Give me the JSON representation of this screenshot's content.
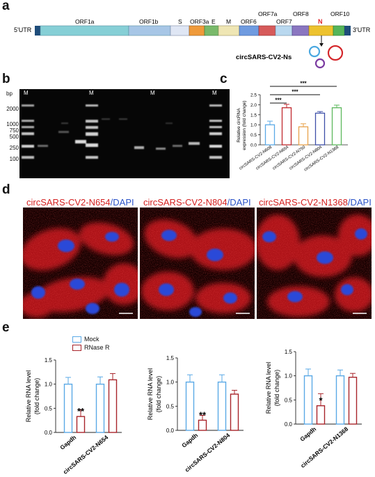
{
  "panels": {
    "a": "a",
    "b": "b",
    "c": "c",
    "d": "d",
    "e": "e"
  },
  "genome": {
    "utr5": "5'UTR",
    "utr3": "3'UTR",
    "labels": [
      "ORF1a",
      "ORF1b",
      "S",
      "ORF3a",
      "E",
      "M",
      "ORF6",
      "ORF7a",
      "ORF7",
      "ORF8",
      "N",
      "ORF10"
    ],
    "circ_label": "circSARS-CV2-Ns",
    "colors": {
      "orf1a": "#86cfd6",
      "orf1b": "#a7c6e6",
      "s": "#dfe6f4",
      "orf3a": "#ef9a3a",
      "e": "#79b96a",
      "m": "#efe6b4",
      "orf6": "#6f9be0",
      "orf7a": "#d65a5a",
      "orf7": "#b9d8ef",
      "orf8": "#8a76c0",
      "n": "#edc22e",
      "orf10": "#55b55a",
      "ends": "#1f4d7a",
      "n_label": "#e0262a"
    }
  },
  "gel": {
    "axis_unit": "bp",
    "ladder_ticks": [
      "2000",
      "1000",
      "750",
      "500",
      "250",
      "100"
    ],
    "marker_labels": [
      "M",
      "M",
      "M",
      "M"
    ]
  },
  "panel_c": {
    "ylabel_1": "Relative circRNA",
    "ylabel_2": "expression (fold change)",
    "yticks": [
      "0.0",
      "0.5",
      "1.0",
      "1.5",
      "2.0",
      "2.5"
    ],
    "sig": [
      "***",
      "***",
      "***"
    ]
  },
  "micrographs": [
    {
      "name": "circSARS-CV2-N654",
      "sep": "/",
      "dapi": "DAPI"
    },
    {
      "name": "circSARS-CV2-N804",
      "sep": "/",
      "dapi": "DAPI"
    },
    {
      "name": "circSARS-CV2-N1368",
      "sep": "/",
      "dapi": "DAPI"
    }
  ],
  "legend_e": {
    "mock": "Mock",
    "rnase": "RNase R"
  },
  "chart_data": [
    {
      "type": "bar",
      "categories": [
        "circSARS-CV2-N608",
        "circSARS-CV2-N654",
        "circSARS-CV2-N750",
        "circSARS-CV2-N804",
        "circSARS-CV2-N1368"
      ],
      "values": [
        1.0,
        1.85,
        0.9,
        1.58,
        1.85
      ],
      "errors": [
        0.18,
        0.17,
        0.15,
        0.08,
        0.13
      ],
      "colors": [
        "#5aa9e6",
        "#c0282d",
        "#e8a24a",
        "#3d4fa8",
        "#5cb85c"
      ],
      "ylim": [
        0,
        2.5
      ],
      "yticks": [
        0,
        0.5,
        1.0,
        1.5,
        2.0,
        2.5
      ],
      "significance": [
        {
          "from": 0,
          "to": 1,
          "label": "***"
        },
        {
          "from": 0,
          "to": 3,
          "label": "***"
        },
        {
          "from": 0,
          "to": 4,
          "label": "***"
        }
      ]
    },
    {
      "type": "bar",
      "categories": [
        "Gapdh",
        "circSARS-CV2-N654"
      ],
      "series": [
        {
          "name": "Mock",
          "values": [
            1.0,
            1.0
          ],
          "errors": [
            0.14,
            0.15
          ],
          "color": "#5aa9e6"
        },
        {
          "name": "RNase R",
          "values": [
            0.33,
            1.09
          ],
          "errors": [
            0.14,
            0.13
          ],
          "color": "#a8242a"
        }
      ],
      "stars": [
        "**",
        ""
      ],
      "ylabel": "Relative RNA level\n(fold change)",
      "ylim": [
        0,
        1.5
      ],
      "yticks": [
        "0.0",
        "0.5",
        "1.0",
        "1.5"
      ]
    },
    {
      "type": "bar",
      "categories": [
        "Gapdh",
        "circSARS-CV2-N804"
      ],
      "series": [
        {
          "name": "Mock",
          "values": [
            1.0,
            1.0
          ],
          "errors": [
            0.15,
            0.15
          ],
          "color": "#5aa9e6"
        },
        {
          "name": "RNase R",
          "values": [
            0.21,
            0.75
          ],
          "errors": [
            0.1,
            0.08
          ],
          "color": "#a8242a"
        }
      ],
      "stars": [
        "**",
        ""
      ],
      "ylabel": "Relative RNA level\n(fold change)",
      "ylim": [
        0,
        1.5
      ],
      "yticks": [
        "0.0",
        "0.5",
        "1.0",
        "1.5"
      ]
    },
    {
      "type": "bar",
      "categories": [
        "Gapdh",
        "circSARS-CV2-N1368"
      ],
      "series": [
        {
          "name": "Mock",
          "values": [
            1.0,
            1.0
          ],
          "errors": [
            0.14,
            0.12
          ],
          "color": "#5aa9e6"
        },
        {
          "name": "RNase R",
          "values": [
            0.38,
            0.97
          ],
          "errors": [
            0.25,
            0.08
          ],
          "color": "#a8242a"
        }
      ],
      "stars": [
        "*",
        ""
      ],
      "ylabel": "Relative RNA level\n(fold change)",
      "ylim": [
        0,
        1.5
      ],
      "yticks": [
        "0.0",
        "0.5",
        "1.0",
        "1.5"
      ]
    }
  ]
}
